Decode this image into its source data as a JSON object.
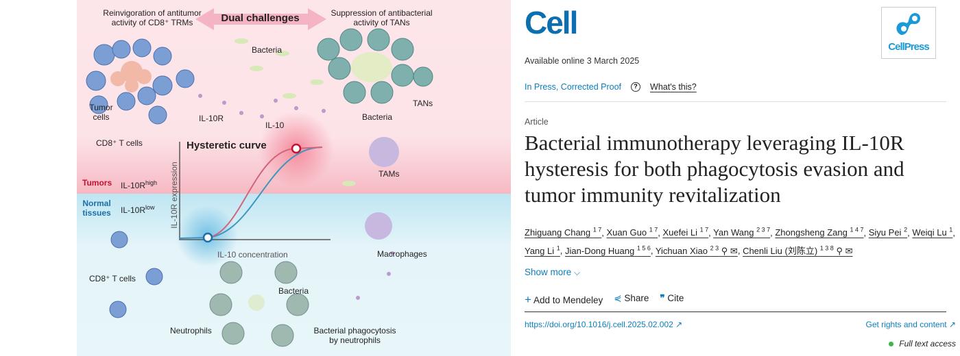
{
  "figure": {
    "top_left": "Reinvigoration of antitumor activity of CD8⁺ TRMs",
    "center_banner": "Dual challenges",
    "top_right": "Suppression of antibacterial activity of TANs",
    "bacteria_top": "Bacteria",
    "tumor_cells": "Tumor cells",
    "il10r": "IL-10R",
    "il10": "IL-10",
    "bacteria_right": "Bacteria",
    "tans": "TANs",
    "cd8_top": "CD8⁺ T cells",
    "hysteretic_curve": "Hysteretic curve",
    "tams": "TAMs",
    "tumors": "Tumors",
    "il10r_high": "IL-10R",
    "il10r_high_sup": "high",
    "normal_tissues": "Normal tissues",
    "il10r_low": "IL-10R",
    "il10r_low_sup": "low",
    "y_axis": "IL-10R expression",
    "x_axis": "IL-10 concentration",
    "macrophages": "Macrophages",
    "cd8_bottom": "CD8⁺ T cells",
    "bacteria_bottom": "Bacteria",
    "neutrophils": "Neutrophils",
    "phagocytosis": "Bacterial phagocytosis by neutrophils",
    "colors": {
      "tumor_red": "#c8102e",
      "normal_blue": "#1b6fa8",
      "cell_blue": "#7b9fd4",
      "tan_teal": "#6fa5a3"
    }
  },
  "journal": {
    "name": "Cell",
    "publisher": "CellPress",
    "brand_color": "#0c6fb0"
  },
  "available_online": "Available online 3 March 2025",
  "status": "In Press, Corrected Proof",
  "whats_this": "What's this?",
  "article_type": "Article",
  "title": "Bacterial immunotherapy leveraging IL-10R hysteresis for both phagocytosis evasion and tumor immunity revitalization",
  "authors": [
    {
      "name": "Zhiguang Chang",
      "aff": "1 7"
    },
    {
      "name": "Xuan Guo",
      "aff": "1 7"
    },
    {
      "name": "Xuefei Li",
      "aff": "1 7"
    },
    {
      "name": "Yan Wang",
      "aff": "2 3 7"
    },
    {
      "name": "Zhongsheng Zang",
      "aff": "1 4 7"
    },
    {
      "name": "Siyu Pei",
      "aff": "2"
    },
    {
      "name": "Weiqi Lu",
      "aff": "1"
    },
    {
      "name": "Yang Li",
      "aff": "1"
    },
    {
      "name": "Jian-Dong Huang",
      "aff": "1 5 6"
    },
    {
      "name": "Yichuan Xiao",
      "aff": "2 3"
    },
    {
      "name": "Chenli Liu (刘陈立)",
      "aff": "1 3 8"
    }
  ],
  "show_more": "Show more",
  "actions": {
    "mendeley": "Add to Mendeley",
    "share": "Share",
    "cite": "Cite"
  },
  "doi": "https://doi.org/10.1016/j.cell.2025.02.002",
  "rights": "Get rights and content",
  "access": "Full text access",
  "access_color": "#3fb34f"
}
